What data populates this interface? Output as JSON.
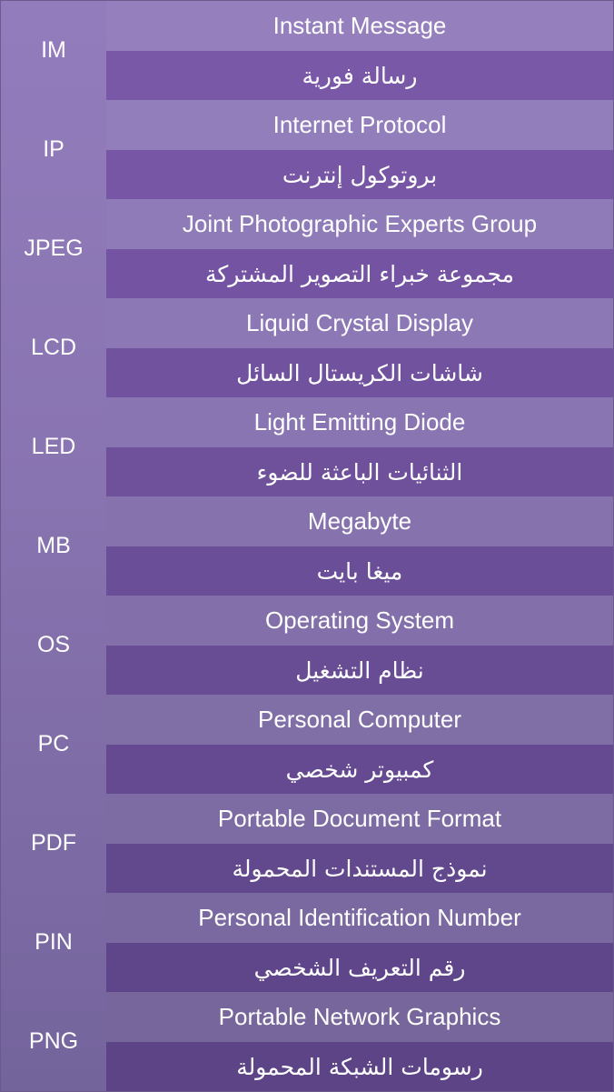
{
  "rows": [
    {
      "abbr": "IM",
      "english": "Instant Message",
      "arabic": "رسالة فورية",
      "en_bg": "#9580bd",
      "ar_bg": "#7a58a8"
    },
    {
      "abbr": "IP",
      "english": "Internet Protocol",
      "arabic": "بروتوكول إنترنت",
      "en_bg": "#927ebb",
      "ar_bg": "#7756a5"
    },
    {
      "abbr": "JPEG",
      "english": "Joint Photographic Experts Group",
      "arabic": "مجموعة خبراء التصوير المشتركة",
      "en_bg": "#8f7bb8",
      "ar_bg": "#7454a2"
    },
    {
      "abbr": "LCD",
      "english": "Liquid Crystal Display",
      "arabic": "شاشات الكريستال السائل",
      "en_bg": "#8c78b5",
      "ar_bg": "#71529f"
    },
    {
      "abbr": "LED",
      "english": "Light Emitting Diode",
      "arabic": "الثنائيات الباعثة للضوء",
      "en_bg": "#8975b1",
      "ar_bg": "#6e509b"
    },
    {
      "abbr": "MB",
      "english": "Megabyte",
      "arabic": "ميغا بايت",
      "en_bg": "#8673ae",
      "ar_bg": "#6b4e98"
    },
    {
      "abbr": "OS",
      "english": "Operating System",
      "arabic": "نظام التشغيل",
      "en_bg": "#8370aa",
      "ar_bg": "#684c94"
    },
    {
      "abbr": "PC",
      "english": "Personal Computer",
      "arabic": "كمبيوتر شخصي",
      "en_bg": "#806ea7",
      "ar_bg": "#654a91"
    },
    {
      "abbr": "PDF",
      "english": "Portable Document Format",
      "arabic": "نموذج المستندات المحمولة",
      "en_bg": "#7d6ba3",
      "ar_bg": "#62488d"
    },
    {
      "abbr": "PIN",
      "english": "Personal Identification Number",
      "arabic": "رقم التعريف الشخصي",
      "en_bg": "#7a68a0",
      "ar_bg": "#5f468a"
    },
    {
      "abbr": "PNG",
      "english": "Portable Network Graphics",
      "arabic": "رسومات الشبكة المحمولة",
      "en_bg": "#77669c",
      "ar_bg": "#5c4486"
    }
  ]
}
